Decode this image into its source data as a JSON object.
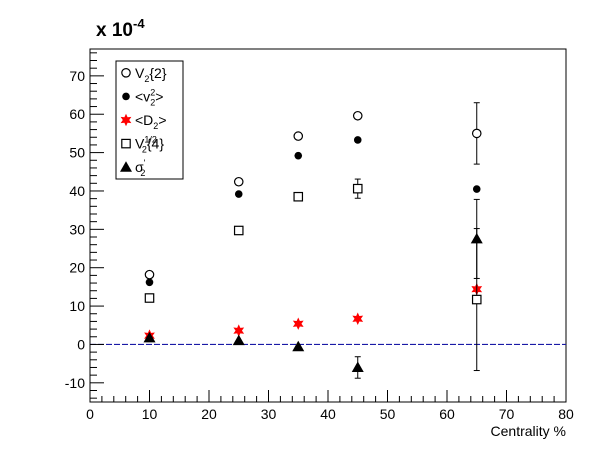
{
  "chart_data": {
    "type": "scatter",
    "scale_label": "x 10",
    "scale_exponent": "-4",
    "xlabel": "Centrality %",
    "ylabel": "",
    "xlim": [
      0,
      80
    ],
    "ylim": [
      -15,
      77
    ],
    "x_ticks": [
      0,
      10,
      20,
      30,
      40,
      50,
      60,
      70,
      80
    ],
    "y_ticks": [
      -10,
      0,
      10,
      20,
      30,
      40,
      50,
      60,
      70
    ],
    "legend_position": "top-left",
    "reference_line": {
      "y": 0,
      "color": "#1a1aa6",
      "style": "dashed"
    },
    "series": [
      {
        "name": "V2{2}",
        "label_main": "V",
        "label_sub": "2",
        "label_tail": "{2}",
        "marker": "open-circle",
        "color": "#000000",
        "points": [
          {
            "x": 10,
            "y": 18.2
          },
          {
            "x": 25,
            "y": 42.4
          },
          {
            "x": 35,
            "y": 54.3
          },
          {
            "x": 45,
            "y": 59.6
          },
          {
            "x": 65,
            "y": 55.0,
            "err": 8.0
          }
        ]
      },
      {
        "name": "<v2^2>",
        "label_main": "<v",
        "label_sup": "2",
        "label_sub": "2",
        "label_tail": ">",
        "marker": "filled-circle",
        "color": "#000000",
        "points": [
          {
            "x": 10,
            "y": 16.2
          },
          {
            "x": 25,
            "y": 39.2
          },
          {
            "x": 35,
            "y": 49.2
          },
          {
            "x": 45,
            "y": 53.3
          },
          {
            "x": 65,
            "y": 40.5
          }
        ]
      },
      {
        "name": "<D2>",
        "label_main": "<D",
        "label_sub": "2",
        "label_tail": ">",
        "marker": "star",
        "color": "#ff0000",
        "points": [
          {
            "x": 10,
            "y": 2.3
          },
          {
            "x": 25,
            "y": 3.6
          },
          {
            "x": 35,
            "y": 5.4
          },
          {
            "x": 45,
            "y": 6.7
          },
          {
            "x": 65,
            "y": 14.4
          }
        ]
      },
      {
        "name": "V2^{1/2}{4}",
        "label_main": "V",
        "label_sup": "1/2",
        "label_sub": "2",
        "label_tail": "{4}",
        "marker": "open-square",
        "color": "#000000",
        "points": [
          {
            "x": 10,
            "y": 12.1
          },
          {
            "x": 25,
            "y": 29.7
          },
          {
            "x": 35,
            "y": 38.5
          },
          {
            "x": 45,
            "y": 40.6,
            "err": 2.5
          },
          {
            "x": 65,
            "y": 11.7,
            "err": 18.5
          }
        ]
      },
      {
        "name": "σ2'",
        "label_main": "σ",
        "label_sup": "'",
        "label_sub": "2",
        "label_tail": "",
        "marker": "filled-triangle",
        "color": "#000000",
        "points": [
          {
            "x": 10,
            "y": 1.7
          },
          {
            "x": 25,
            "y": 1.0
          },
          {
            "x": 35,
            "y": -0.6
          },
          {
            "x": 45,
            "y": -6.0,
            "err": 2.8
          },
          {
            "x": 65,
            "y": 27.5,
            "err": 10.3
          }
        ]
      }
    ]
  }
}
